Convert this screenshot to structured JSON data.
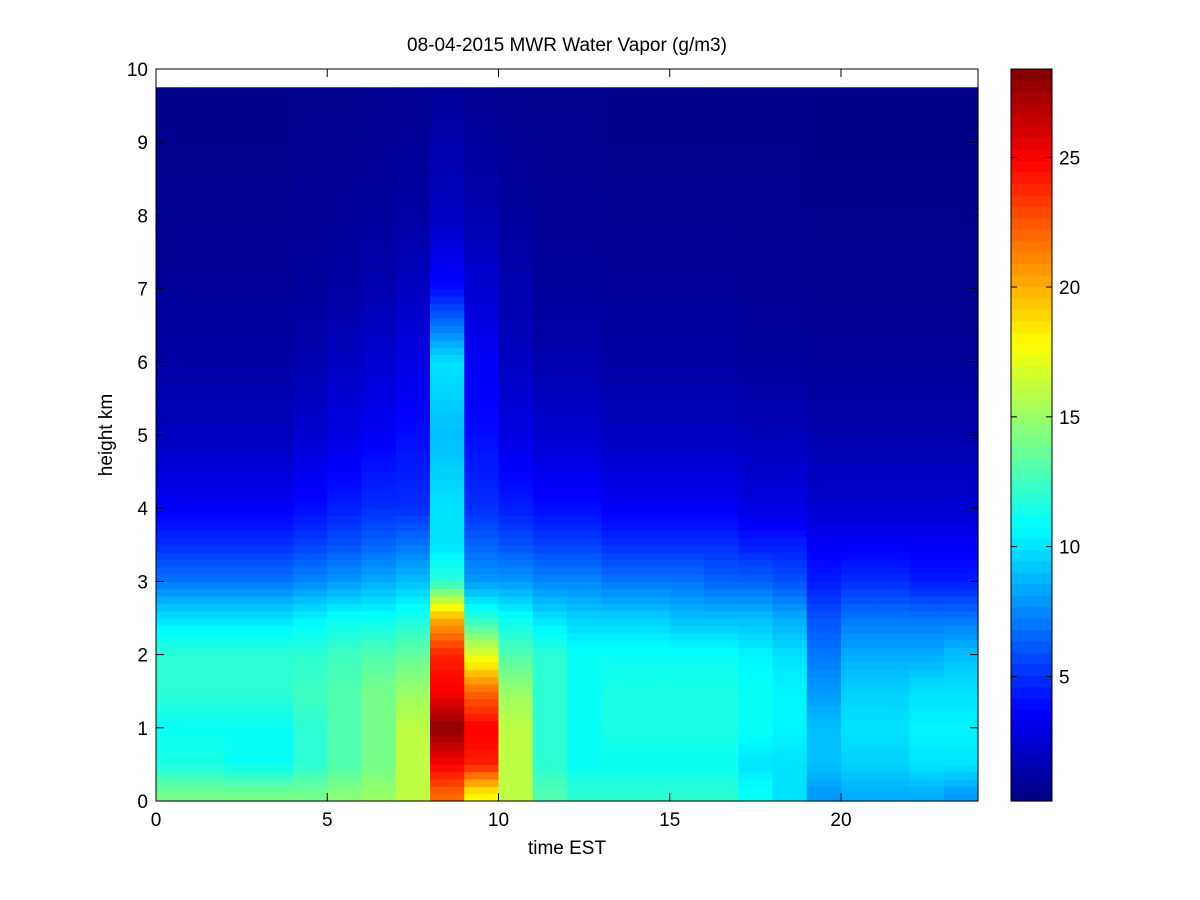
{
  "chart_data": {
    "type": "heatmap",
    "title": "08-04-2015 MWR Water Vapor (g/m3)",
    "xlabel": "time EST",
    "ylabel": "height km",
    "xlim": [
      0,
      24
    ],
    "ylim": [
      0,
      10
    ],
    "x_ticks": [
      "0",
      "5",
      "10",
      "15",
      "20"
    ],
    "y_ticks": [
      "0",
      "1",
      "2",
      "3",
      "4",
      "5",
      "6",
      "7",
      "8",
      "9",
      "10"
    ],
    "colorbar": {
      "range": [
        0.2,
        28.4
      ],
      "ticks": [
        "5",
        "10",
        "15",
        "20",
        "25"
      ],
      "colormap": "jet"
    },
    "column_times": [
      0.0,
      1.0,
      2.0,
      3.0,
      4.0,
      5.0,
      6.0,
      7.0,
      8.0,
      9.0,
      10.0,
      11.0,
      12.0,
      13.0,
      14.0,
      15.0,
      16.0,
      17.0,
      18.0,
      19.0,
      20.0,
      21.0,
      22.0,
      23.0
    ],
    "profile_heights": [
      0.1,
      0.5,
      1.0,
      1.5,
      2.0,
      2.5,
      3.0,
      3.5,
      4.0,
      5.0,
      6.0,
      7.0,
      8.0,
      9.0,
      9.75
    ],
    "values": [
      [
        14,
        11.5,
        11,
        12,
        12,
        10,
        7,
        5,
        3.5,
        2,
        1.2,
        0.9,
        0.7,
        0.6,
        0.5
      ],
      [
        14,
        11.5,
        11,
        12,
        12,
        10,
        7,
        5,
        3.5,
        2,
        1.2,
        0.9,
        0.7,
        0.6,
        0.5
      ],
      [
        14,
        11,
        11,
        12,
        12,
        10,
        7,
        5,
        3.5,
        2,
        1.2,
        0.9,
        0.7,
        0.6,
        0.5
      ],
      [
        14,
        11,
        11,
        12,
        12,
        10,
        7,
        5,
        3.5,
        2,
        1.2,
        0.9,
        0.7,
        0.6,
        0.5
      ],
      [
        14,
        12,
        12,
        12.5,
        12,
        10.5,
        7.5,
        5.5,
        4,
        2.5,
        1.5,
        1.0,
        0.8,
        0.7,
        0.6
      ],
      [
        14.5,
        13,
        13,
        13,
        12.5,
        11,
        8,
        6,
        4.5,
        3,
        2,
        1.2,
        0.9,
        0.7,
        0.6
      ],
      [
        15,
        14,
        14,
        14,
        13,
        11,
        8.5,
        6.5,
        5,
        3.5,
        2.5,
        1.5,
        1.0,
        0.8,
        0.7
      ],
      [
        16,
        16,
        16,
        15,
        13.5,
        11.5,
        9,
        7,
        5,
        4,
        3,
        2,
        1.2,
        0.9,
        0.7
      ],
      [
        22,
        25,
        28,
        25,
        24,
        20,
        12,
        10,
        10,
        9,
        10,
        4,
        2,
        1.5,
        0.8
      ],
      [
        18,
        24,
        25,
        22,
        17,
        12,
        8,
        6.5,
        5,
        4,
        3.5,
        2.5,
        1.5,
        1.0,
        0.7
      ],
      [
        16,
        16,
        16,
        15,
        13,
        11,
        8,
        6,
        4.5,
        3,
        2,
        1.5,
        1.0,
        0.8,
        0.6
      ],
      [
        13,
        12,
        12,
        12,
        12,
        10,
        7.5,
        5.5,
        4,
        2.5,
        1.5,
        1.0,
        0.8,
        0.7,
        0.6
      ],
      [
        12,
        11,
        11,
        11,
        11,
        9.5,
        7.5,
        5.5,
        4,
        2.5,
        1.5,
        1.0,
        0.8,
        0.7,
        0.6
      ],
      [
        12,
        11,
        11.5,
        11.5,
        11,
        9.5,
        7,
        5,
        3.5,
        2,
        1.2,
        0.9,
        0.7,
        0.6,
        0.5
      ],
      [
        12,
        11,
        11.5,
        11.5,
        11,
        9.5,
        7,
        5,
        3.5,
        2,
        1.2,
        0.9,
        0.7,
        0.6,
        0.5
      ],
      [
        12,
        11,
        11.5,
        11.5,
        11,
        9,
        7,
        5,
        3.5,
        2,
        1.2,
        0.9,
        0.7,
        0.6,
        0.5
      ],
      [
        12,
        11,
        11.5,
        11.5,
        11,
        9,
        6.5,
        5,
        3.5,
        2,
        1.2,
        0.9,
        0.7,
        0.6,
        0.5
      ],
      [
        11,
        10,
        11,
        11,
        10.5,
        9,
        6.5,
        4.5,
        3,
        1.8,
        1.0,
        0.8,
        0.7,
        0.6,
        0.5
      ],
      [
        10,
        10,
        10.5,
        10.5,
        10,
        8.5,
        6,
        4.5,
        3,
        1.8,
        1.0,
        0.8,
        0.7,
        0.6,
        0.5
      ],
      [
        8,
        9,
        9,
        8,
        7,
        6,
        4.5,
        3.5,
        2.5,
        1.5,
        0.9,
        0.7,
        0.6,
        0.5,
        0.5
      ],
      [
        8.5,
        9.5,
        10,
        9.5,
        8.5,
        7,
        5,
        3.5,
        2.5,
        1.5,
        0.9,
        0.7,
        0.6,
        0.5,
        0.5
      ],
      [
        8.5,
        9.5,
        10,
        9.5,
        8.5,
        7,
        5,
        3.5,
        2.5,
        1.5,
        0.9,
        0.7,
        0.6,
        0.5,
        0.5
      ],
      [
        8.5,
        10,
        10.5,
        10,
        8.5,
        7,
        4.5,
        3.5,
        2.5,
        1.5,
        0.9,
        0.7,
        0.6,
        0.5,
        0.5
      ],
      [
        8,
        10,
        10.5,
        10,
        9,
        7,
        4.5,
        3.5,
        2.5,
        1.5,
        0.9,
        0.7,
        0.6,
        0.5,
        0.5
      ]
    ]
  }
}
